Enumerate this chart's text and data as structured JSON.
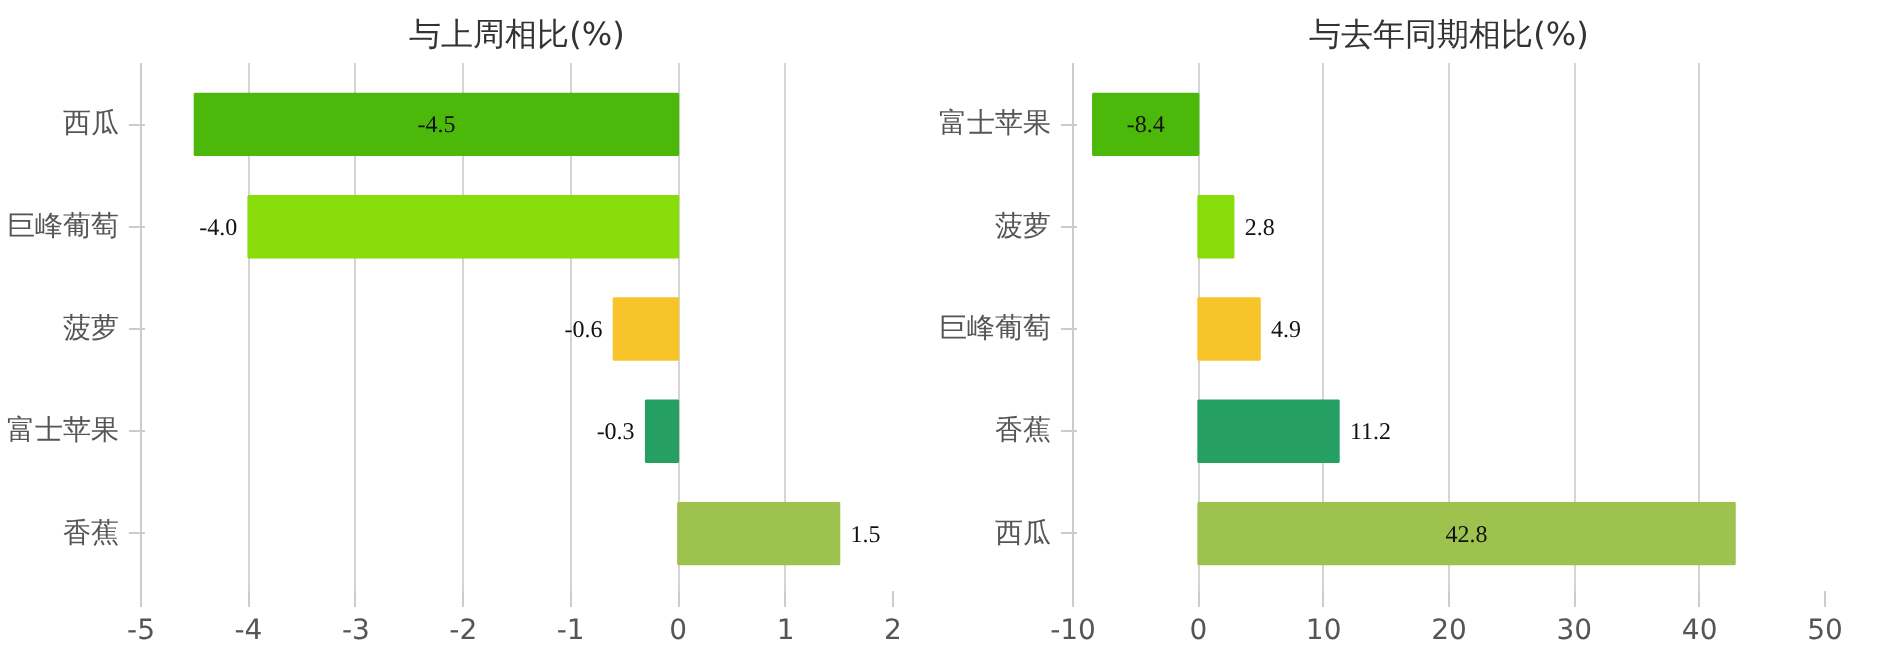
{
  "chart_data": [
    {
      "type": "bar",
      "orientation": "horizontal",
      "title": "与上周相比(%)",
      "categories": [
        "西瓜",
        "巨峰葡萄",
        "菠萝",
        "富士苹果",
        "香蕉"
      ],
      "values": [
        -4.5,
        -4.0,
        -0.6,
        -0.3,
        1.5
      ],
      "colors": [
        "#4cb80a",
        "#88dc0a",
        "#f7c52a",
        "#259f62",
        "#9dc24e"
      ],
      "xlim": [
        -5,
        2
      ],
      "xticks": [
        -5,
        -4,
        -3,
        -2,
        -1,
        0,
        1,
        2
      ],
      "grid": "x",
      "value_labels": [
        "-4.5",
        "-4.0",
        "-0.6",
        "-0.3",
        "1.5"
      ]
    },
    {
      "type": "bar",
      "orientation": "horizontal",
      "title": "与去年同期相比(%)",
      "categories": [
        "富士苹果",
        "菠萝",
        "巨峰葡萄",
        "香蕉",
        "西瓜"
      ],
      "values": [
        -8.4,
        2.8,
        4.9,
        11.2,
        42.8
      ],
      "colors": [
        "#4cb80a",
        "#88dc0a",
        "#f7c52a",
        "#259f62",
        "#9dc24e"
      ],
      "xlim": [
        -10,
        50
      ],
      "xticks": [
        -10,
        0,
        10,
        20,
        30,
        40,
        50
      ],
      "grid": "x",
      "value_labels": [
        "-8.4",
        "2.8",
        "4.9",
        "11.2",
        "42.8"
      ]
    }
  ]
}
